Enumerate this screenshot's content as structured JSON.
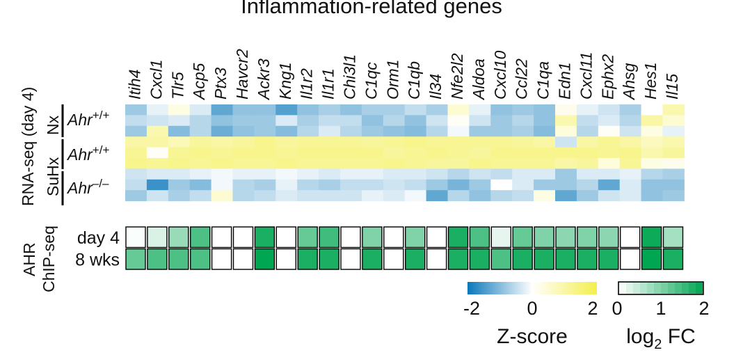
{
  "chart_data": {
    "type": "heatmap",
    "title": "Inflammation-related genes",
    "genes": [
      "Itih4",
      "Cxcl1",
      "Tlr5",
      "Acp5",
      "Ptx3",
      "Havcr2",
      "Ackr3",
      "Kng1",
      "Il1r2",
      "Il1r1",
      "Chi3l1",
      "C1qc",
      "Orm1",
      "C1qb",
      "Il34",
      "Nfe2l2",
      "Aldoa",
      "Cxcl10",
      "Ccl22",
      "C1qa",
      "Edn1",
      "Cxcl11",
      "Ephx2",
      "Ahsg",
      "Hes1",
      "Il15"
    ],
    "rna_seq": {
      "label": "RNA-seq (day 4)",
      "conditions": [
        {
          "label": "Nx",
          "genotype_base": "Ahr",
          "genotype_sup": "+/+"
        },
        {
          "label": "SuHx",
          "genotype_base": "Ahr",
          "genotype_sup": "+/+"
        },
        {
          "label": "SuHx",
          "genotype_base": "Ahr",
          "genotype_sup": "–/–"
        }
      ],
      "row_groups": [
        3,
        3,
        3
      ],
      "zscores": [
        [
          -0.8,
          -0.2,
          0.3,
          -0.3,
          -1.3,
          -0.9,
          -0.9,
          -1.4,
          -0.9,
          -0.7,
          -0.9,
          -0.7,
          -0.7,
          -0.5,
          -0.7,
          0.5,
          -0.2,
          -0.9,
          -0.8,
          -0.9,
          0.2,
          -0.2,
          -0.4,
          -0.7,
          0.0,
          0.9
        ],
        [
          -0.5,
          -0.4,
          -0.3,
          -0.6,
          -0.9,
          -0.8,
          -0.8,
          -0.3,
          -0.7,
          -0.5,
          -0.5,
          -0.9,
          -0.6,
          -0.9,
          -0.4,
          0.1,
          -0.4,
          -0.8,
          -0.6,
          -0.9,
          0.9,
          -0.5,
          -0.3,
          -0.6,
          1.0,
          0.5
        ],
        [
          -0.8,
          0.9,
          -1.0,
          -0.6,
          -1.2,
          -0.9,
          -0.8,
          -1.0,
          -0.6,
          -0.3,
          -0.6,
          -0.8,
          -0.9,
          -1.0,
          -0.6,
          -0.1,
          -0.8,
          -0.8,
          -0.7,
          -1.0,
          0.4,
          -0.6,
          0.1,
          -0.4,
          0.3,
          -0.2
        ],
        [
          1.0,
          1.0,
          0.8,
          1.1,
          1.0,
          1.1,
          1.3,
          1.1,
          1.2,
          1.2,
          1.2,
          1.1,
          1.2,
          1.3,
          1.2,
          1.2,
          1.2,
          1.2,
          1.1,
          1.0,
          -0.4,
          1.0,
          1.2,
          1.0,
          0.7,
          0.9
        ],
        [
          1.2,
          0.1,
          1.2,
          1.3,
          1.2,
          1.3,
          1.3,
          1.2,
          1.3,
          1.3,
          1.3,
          1.3,
          1.1,
          1.2,
          1.3,
          1.2,
          1.1,
          1.3,
          1.3,
          1.3,
          1.3,
          1.3,
          1.2,
          1.3,
          0.9,
          1.1
        ],
        [
          1.3,
          1.2,
          1.3,
          1.2,
          1.3,
          1.2,
          1.2,
          1.3,
          1.2,
          1.2,
          1.2,
          1.2,
          1.3,
          1.2,
          1.1,
          1.1,
          1.3,
          1.2,
          1.2,
          1.2,
          1.0,
          1.1,
          0.4,
          1.2,
          0.3,
          0.2
        ],
        [
          -0.4,
          -0.3,
          -0.3,
          -0.2,
          -0.1,
          -0.2,
          -0.2,
          -0.1,
          -0.2,
          -0.3,
          -0.2,
          -0.2,
          -0.3,
          -0.3,
          -0.4,
          -0.6,
          -0.4,
          -0.5,
          -0.3,
          -0.3,
          -0.8,
          -0.3,
          -0.3,
          -0.2,
          -0.6,
          -0.7
        ],
        [
          -0.5,
          -1.6,
          -0.8,
          -1.0,
          -0.1,
          -0.6,
          -0.7,
          -0.2,
          -0.6,
          -0.7,
          -0.5,
          -0.5,
          -0.4,
          -0.5,
          -0.8,
          -1.1,
          -0.8,
          0.0,
          -0.3,
          -0.8,
          -0.8,
          -0.6,
          -1.3,
          -0.3,
          -0.9,
          -0.9
        ],
        [
          -0.8,
          -0.4,
          -0.7,
          -0.5,
          0.5,
          -0.6,
          -0.5,
          -0.3,
          -0.4,
          -0.4,
          -0.4,
          -0.2,
          -0.3,
          -0.1,
          -1.3,
          -0.6,
          -0.9,
          -0.6,
          -0.5,
          0.3,
          -1.3,
          -0.8,
          -0.4,
          -0.3,
          -0.9,
          -0.8
        ]
      ]
    },
    "chip_seq": {
      "label_line1": "AHR",
      "label_line2": "ChIP-seq",
      "rows": [
        "day 4",
        "8 wks"
      ],
      "log2fc": [
        [
          0.05,
          0.3,
          0.8,
          1.4,
          0,
          0,
          1.8,
          0,
          1.2,
          1.5,
          0,
          1.0,
          0,
          1.0,
          0,
          1.8,
          1.4,
          0.2,
          1.2,
          1.0,
          0.9,
          1.0,
          0.9,
          0,
          1.9,
          0.7
        ],
        [
          1.2,
          1.4,
          1.4,
          1.4,
          0,
          0,
          2.0,
          0,
          1.8,
          1.8,
          0,
          1.8,
          0,
          1.8,
          0,
          1.8,
          1.8,
          1.4,
          1.8,
          1.8,
          1.8,
          1.8,
          1.8,
          0,
          2.0,
          1.8
        ]
      ]
    },
    "legend_zscore": {
      "label": "Z-score",
      "ticks": [
        "-2",
        "0",
        "2"
      ],
      "range": [
        -2,
        2
      ],
      "colors": [
        "#0a77ba",
        "#ffffff",
        "#f3ef4c"
      ]
    },
    "legend_log2fc": {
      "label_base": "log",
      "label_sub": "2",
      "label_rest": " FC",
      "ticks": [
        "0",
        "1",
        "2"
      ],
      "range": [
        0,
        2
      ],
      "colors": [
        "#ffffff",
        "#00a651"
      ]
    }
  }
}
